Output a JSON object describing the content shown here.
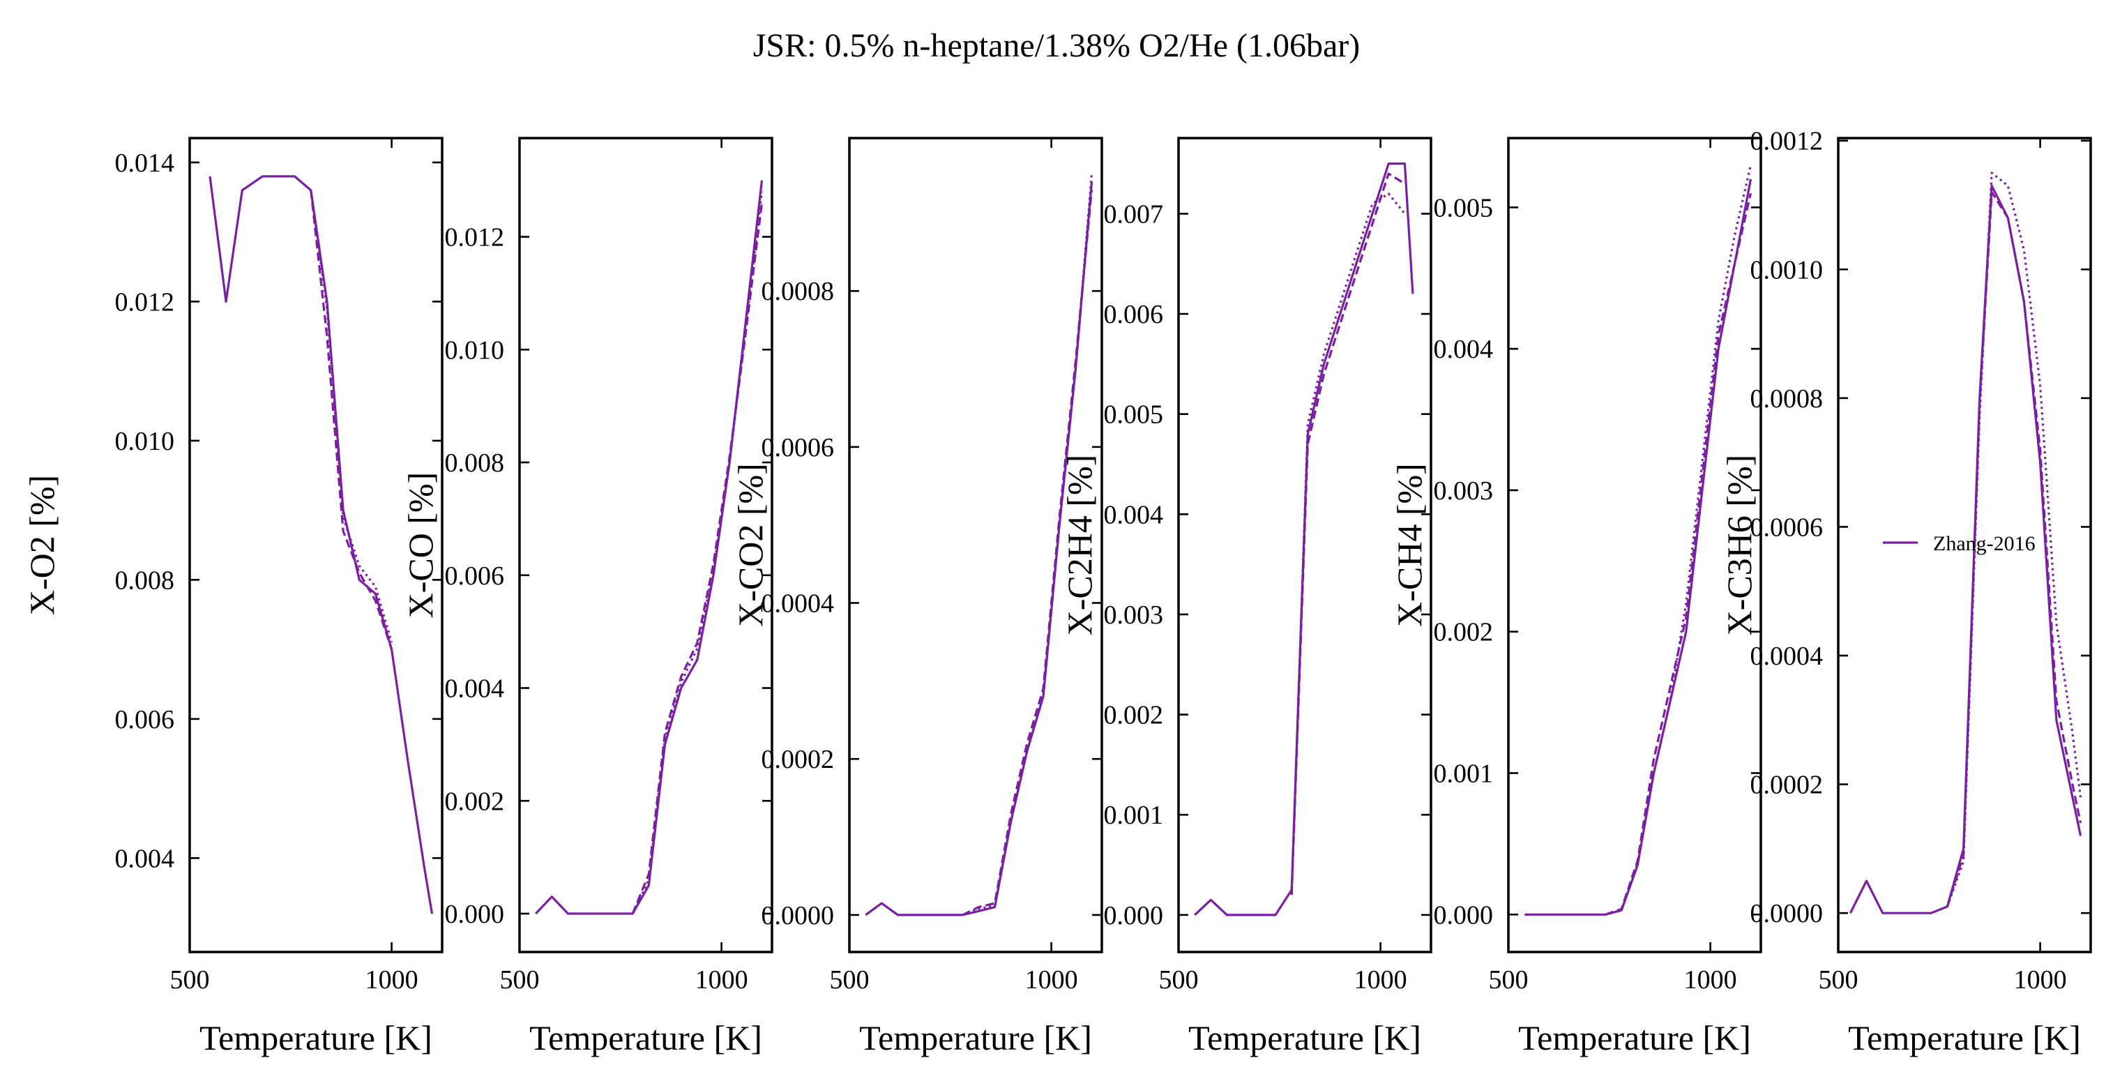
{
  "figure_title": "JSR: 0.5% n-heptane/1.38% O2/He (1.06bar)",
  "colors": {
    "series": "#7a1fa2",
    "axes": "#000000",
    "background": "#ffffff"
  },
  "chart_data": [
    {
      "type": "line",
      "xlabel": "Temperature [K]",
      "ylabel": "X-O2 [%]",
      "xlim": [
        500,
        1125
      ],
      "ylim": [
        0.00265,
        0.01435
      ],
      "xticks": [
        500,
        1000
      ],
      "yticks": [
        0.004,
        0.006,
        0.008,
        0.01,
        0.012,
        0.014
      ],
      "ytick_labels": [
        "0.004",
        "0.006",
        "0.008",
        "0.010",
        "0.012",
        "0.014"
      ],
      "series": [
        {
          "name": "Zhang-2016",
          "style": "solid",
          "x": [
            550,
            590,
            630,
            680,
            720,
            760,
            800,
            840,
            880,
            920,
            960,
            1000,
            1040,
            1080,
            1100
          ],
          "y": [
            0.0138,
            0.012,
            0.0136,
            0.0138,
            0.0138,
            0.0138,
            0.0136,
            0.012,
            0.009,
            0.008,
            0.0078,
            0.007,
            0.0054,
            0.0039,
            0.0032
          ]
        },
        {
          "style": "dashed",
          "x": [
            800,
            840,
            880,
            920,
            960,
            1000
          ],
          "y": [
            0.0136,
            0.0115,
            0.0087,
            0.0081,
            0.0077,
            0.007
          ]
        },
        {
          "style": "dotted",
          "x": [
            800,
            840,
            880,
            920,
            960,
            1000
          ],
          "y": [
            0.0136,
            0.0119,
            0.0089,
            0.0082,
            0.0079,
            0.0071
          ]
        }
      ]
    },
    {
      "type": "line",
      "xlabel": "Temperature [K]",
      "ylabel": "X-CO [%]",
      "xlim": [
        500,
        1125
      ],
      "ylim": [
        -0.00068,
        0.01375
      ],
      "xticks": [
        500,
        1000
      ],
      "yticks": [
        0.0,
        0.002,
        0.004,
        0.006,
        0.008,
        0.01,
        0.012
      ],
      "ytick_labels": [
        "0.000",
        "0.002",
        "0.004",
        "0.006",
        "0.008",
        "0.010",
        "0.012"
      ],
      "series": [
        {
          "name": "Zhang-2016",
          "style": "solid",
          "x": [
            540,
            580,
            620,
            660,
            700,
            740,
            780,
            820,
            860,
            900,
            940,
            980,
            1020,
            1060,
            1100
          ],
          "y": [
            0.0,
            0.0003,
            0.0,
            0.0,
            0.0,
            0.0,
            0.0,
            0.0005,
            0.003,
            0.004,
            0.0045,
            0.006,
            0.008,
            0.0105,
            0.013
          ]
        },
        {
          "style": "dashed",
          "x": [
            780,
            820,
            860,
            900,
            940,
            980,
            1020,
            1060,
            1100
          ],
          "y": [
            0.0,
            0.0007,
            0.0032,
            0.0042,
            0.0048,
            0.0062,
            0.0081,
            0.0103,
            0.0126
          ]
        },
        {
          "style": "dotted",
          "x": [
            780,
            820,
            860,
            900,
            940,
            980,
            1020,
            1060,
            1100
          ],
          "y": [
            0.0,
            0.0006,
            0.0031,
            0.0041,
            0.0047,
            0.0061,
            0.008,
            0.0104,
            0.0128
          ]
        }
      ]
    },
    {
      "type": "line",
      "xlabel": "Temperature [K]",
      "ylabel": "X-CO2 [%]",
      "xlim": [
        500,
        1125
      ],
      "ylim": [
        -4.75e-05,
        0.000996
      ],
      "xticks": [
        500,
        1000
      ],
      "yticks": [
        0.0,
        0.0002,
        0.0004,
        0.0006,
        0.0008
      ],
      "ytick_labels": [
        "0.0000",
        "0.0002",
        "0.0004",
        "0.0006",
        "0.0008"
      ],
      "series": [
        {
          "name": "Zhang-2016",
          "style": "solid",
          "x": [
            540,
            580,
            620,
            660,
            700,
            740,
            780,
            820,
            860,
            900,
            940,
            980,
            1020,
            1060,
            1100
          ],
          "y": [
            0.0,
            1.5e-05,
            0.0,
            0.0,
            0.0,
            0.0,
            0.0,
            5e-06,
            1e-05,
            0.00012,
            0.00021,
            0.00028,
            0.0005,
            0.0007,
            0.00094
          ]
        },
        {
          "style": "dashed",
          "x": [
            780,
            820,
            860,
            900,
            940,
            980,
            1020,
            1060,
            1100
          ],
          "y": [
            0.0,
            1e-05,
            1.5e-05,
            0.00013,
            0.00022,
            0.00029,
            0.00051,
            0.00071,
            0.00093
          ]
        },
        {
          "style": "dotted",
          "x": [
            780,
            820,
            860,
            900,
            940,
            980,
            1020,
            1060,
            1100
          ],
          "y": [
            0.0,
            8e-06,
            1.2e-05,
            0.00012,
            0.00021,
            0.00028,
            0.0005,
            0.0007,
            0.00095
          ]
        }
      ]
    },
    {
      "type": "line",
      "xlabel": "Temperature [K]",
      "ylabel": "X-C2H4 [%]",
      "xlim": [
        500,
        1125
      ],
      "ylim": [
        -0.00037,
        0.007755
      ],
      "xticks": [
        500,
        1000
      ],
      "yticks": [
        0.0,
        0.001,
        0.002,
        0.003,
        0.004,
        0.005,
        0.006,
        0.007
      ],
      "ytick_labels": [
        "0.000",
        "0.001",
        "0.002",
        "0.003",
        "0.004",
        "0.005",
        "0.006",
        "0.007"
      ],
      "series": [
        {
          "name": "Zhang-2016",
          "style": "solid",
          "x": [
            540,
            580,
            620,
            660,
            700,
            740,
            780,
            820,
            860,
            900,
            940,
            980,
            1020,
            1060,
            1080
          ],
          "y": [
            0.0,
            0.00015,
            0.0,
            0.0,
            0.0,
            0.0,
            0.00025,
            0.0048,
            0.0055,
            0.006,
            0.0065,
            0.007,
            0.0075,
            0.0075,
            0.0062
          ]
        },
        {
          "style": "dashed",
          "x": [
            780,
            820,
            860,
            900,
            940,
            980,
            1020,
            1060
          ],
          "y": [
            0.0002,
            0.0047,
            0.0054,
            0.0059,
            0.0064,
            0.0069,
            0.0074,
            0.0073
          ]
        },
        {
          "style": "dotted",
          "x": [
            780,
            820,
            860,
            900,
            940,
            980,
            1020,
            1060
          ],
          "y": [
            0.0002,
            0.0049,
            0.0056,
            0.0061,
            0.0066,
            0.0071,
            0.0072,
            0.007
          ]
        }
      ]
    },
    {
      "type": "line",
      "xlabel": "Temperature [K]",
      "ylabel": "X-CH4 [%]",
      "xlim": [
        500,
        1125
      ],
      "ylim": [
        -0.000265,
        0.00549
      ],
      "xticks": [
        500,
        1000
      ],
      "yticks": [
        0.0,
        0.001,
        0.002,
        0.003,
        0.004,
        0.005
      ],
      "ytick_labels": [
        "0.000",
        "0.001",
        "0.002",
        "0.003",
        "0.004",
        "0.005"
      ],
      "series": [
        {
          "name": "Zhang-2016",
          "style": "solid",
          "x": [
            540,
            580,
            620,
            660,
            700,
            740,
            780,
            820,
            860,
            900,
            940,
            980,
            1020,
            1060,
            1100
          ],
          "y": [
            0.0,
            0.0,
            0.0,
            0.0,
            0.0,
            0.0,
            3e-05,
            0.00035,
            0.001,
            0.0015,
            0.002,
            0.003,
            0.004,
            0.0046,
            0.0052
          ]
        },
        {
          "style": "dashed",
          "x": [
            740,
            780,
            820,
            860,
            900,
            940,
            980,
            1020,
            1060,
            1100
          ],
          "y": [
            0.0,
            4e-05,
            0.00038,
            0.0011,
            0.0016,
            0.0021,
            0.0031,
            0.0041,
            0.0046,
            0.0051
          ]
        },
        {
          "style": "dotted",
          "x": [
            740,
            780,
            820,
            860,
            900,
            940,
            980,
            1020,
            1060,
            1100
          ],
          "y": [
            0.0,
            3e-05,
            0.00036,
            0.001,
            0.0015,
            0.0022,
            0.0032,
            0.0042,
            0.0048,
            0.0053
          ]
        }
      ]
    },
    {
      "type": "line",
      "xlabel": "Temperature [K]",
      "ylabel": "X-C3H6 [%]",
      "xlim": [
        500,
        1125
      ],
      "ylim": [
        -6.05e-05,
        0.001204
      ],
      "xticks": [
        500,
        1000
      ],
      "yticks": [
        0.0,
        0.0002,
        0.0004,
        0.0006,
        0.0008,
        0.001,
        0.0012
      ],
      "ytick_labels": [
        "0.0000",
        "0.0002",
        "0.0004",
        "0.0006",
        "0.0008",
        "0.0010",
        "0.0012"
      ],
      "series": [
        {
          "name": "Zhang-2016",
          "style": "solid",
          "x": [
            530,
            570,
            610,
            650,
            690,
            730,
            770,
            810,
            850,
            880,
            920,
            960,
            1000,
            1040,
            1080,
            1100
          ],
          "y": [
            0.0,
            5e-05,
            0.0,
            0.0,
            0.0,
            0.0,
            1e-05,
            0.0001,
            0.0008,
            0.00113,
            0.00108,
            0.00095,
            0.0007,
            0.0003,
            0.00018,
            0.00012
          ]
        },
        {
          "style": "dashed",
          "x": [
            770,
            810,
            850,
            880,
            920,
            960,
            1000,
            1040,
            1080,
            1100
          ],
          "y": [
            1e-05,
            9e-05,
            0.00079,
            0.00112,
            0.00108,
            0.00095,
            0.00072,
            0.00033,
            0.0002,
            0.00014
          ]
        },
        {
          "style": "dotted",
          "x": [
            770,
            810,
            850,
            880,
            920,
            960,
            1000,
            1040,
            1080,
            1100
          ],
          "y": [
            1e-05,
            8e-05,
            0.00077,
            0.00115,
            0.00113,
            0.00103,
            0.00082,
            0.00045,
            0.00028,
            0.00018
          ]
        }
      ],
      "legend": {
        "location": "center-right",
        "entries": [
          "Zhang-2016"
        ]
      }
    }
  ]
}
